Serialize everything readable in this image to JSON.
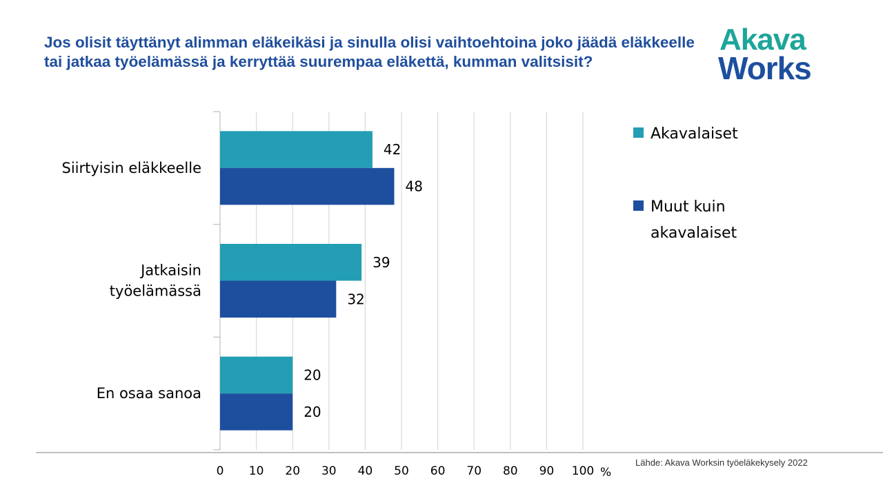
{
  "title": "Jos olisit täyttänyt alimman eläkeikäsi ja sinulla olisi vaihtoehtoina joko jäädä eläkkeelle tai jatkaa työelämässä ja kerryttää suurempaa eläkettä, kumman valitsisit?",
  "logo": {
    "line1": "Akava",
    "line2": "Works"
  },
  "source": "Lähde: Akava Worksin työeläkekysely 2022",
  "chart_data": {
    "type": "bar",
    "orientation": "horizontal",
    "categories": [
      [
        "Siirtyisin eläkkeelle"
      ],
      [
        "Jatkaisin",
        "työelämässä"
      ],
      [
        "En osaa sanoa"
      ]
    ],
    "series": [
      {
        "name": "Akavalaiset",
        "legend_lines": [
          "Akavalaiset"
        ],
        "color": "#239eb4",
        "values": [
          42,
          39,
          20
        ]
      },
      {
        "name": "Muut kuin akavalaiset",
        "legend_lines": [
          "Muut kuin",
          "akavalaiset"
        ],
        "color": "#1e4f9e",
        "values": [
          48,
          32,
          20
        ]
      }
    ],
    "xlim": [
      0,
      100
    ],
    "xticks": [
      0,
      10,
      20,
      30,
      40,
      50,
      60,
      70,
      80,
      90,
      100
    ],
    "xunit": "%",
    "grid": true,
    "legend": "right"
  }
}
